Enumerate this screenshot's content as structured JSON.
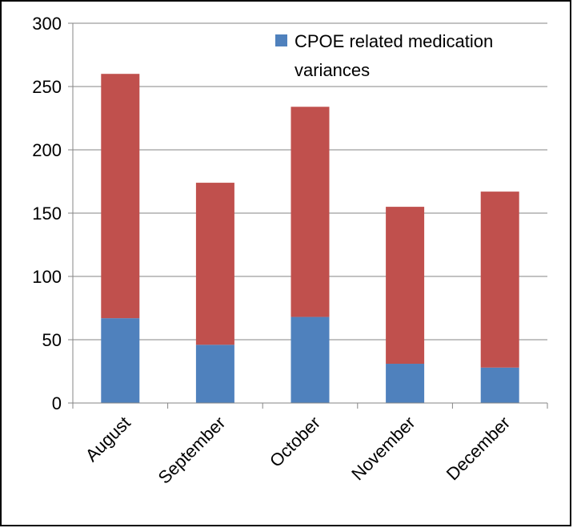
{
  "chart_data": {
    "type": "bar",
    "stacked": true,
    "categories": [
      "August",
      "September",
      "October",
      "November",
      "December"
    ],
    "series": [
      {
        "name": "CPOE related medication variances",
        "color": "#4F81BD",
        "values": [
          67,
          46,
          68,
          31,
          28
        ]
      },
      {
        "color": "#C0504D",
        "values": [
          193,
          128,
          166,
          124,
          139
        ]
      }
    ],
    "ylim": [
      0,
      300
    ],
    "yticks": [
      0,
      50,
      100,
      150,
      200,
      250,
      300
    ],
    "ytick_labels": [
      "0",
      "50",
      "100",
      "150",
      "200",
      "250",
      "300"
    ],
    "grid": true,
    "legend": {
      "position": "top-right",
      "label_lines": [
        "CPOE related medication",
        "variances"
      ]
    },
    "title": "",
    "xlabel": "",
    "ylabel": ""
  }
}
